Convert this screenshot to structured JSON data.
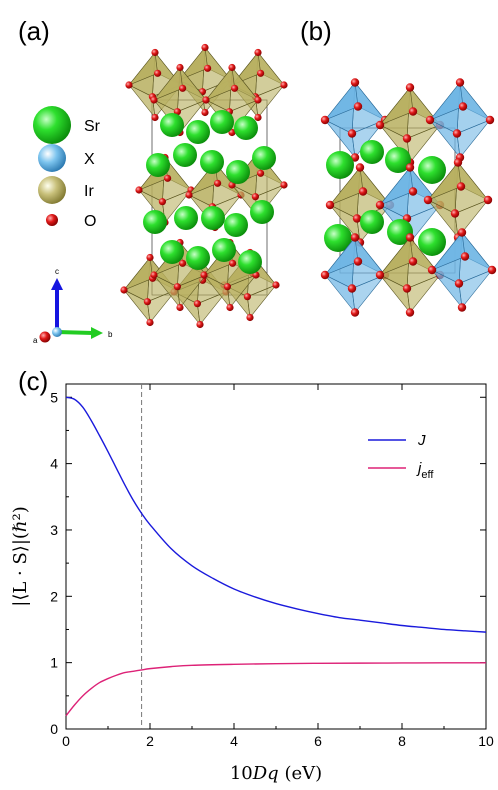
{
  "panels": {
    "a": "(a)",
    "b": "(b)",
    "c": "(c)"
  },
  "structure_legend": [
    {
      "label": "Sr",
      "color": "#22cc22",
      "kind": "big"
    },
    {
      "label": "X",
      "color": "#66bbee",
      "kind": "mid"
    },
    {
      "label": "Ir",
      "color": "#b8b060",
      "kind": "mid"
    },
    {
      "label": "O",
      "color": "#dd1111",
      "kind": "small"
    }
  ],
  "axes_triad": {
    "c": "c",
    "a": "a",
    "b": "b"
  },
  "chart_data": {
    "type": "line",
    "title": "",
    "xlabel": "10Dq (eV)",
    "ylabel": "|⟨L · S⟩|(ℏ²)",
    "xlim": [
      0,
      10
    ],
    "ylim": [
      0,
      5.2
    ],
    "xticks": [
      0,
      2,
      4,
      6,
      8,
      10
    ],
    "yticks": [
      0,
      1,
      2,
      3,
      4,
      5
    ],
    "vline_x": 1.8,
    "legend_position": "top-right",
    "series": [
      {
        "name": "J",
        "color": "#1a1adc",
        "x": [
          0,
          0.2,
          0.4,
          0.6,
          0.8,
          1.0,
          1.2,
          1.4,
          1.6,
          1.8,
          2.0,
          2.5,
          3.0,
          3.5,
          4.0,
          4.5,
          5.0,
          5.5,
          6.0,
          6.5,
          7.0,
          7.5,
          8.0,
          8.5,
          9.0,
          9.5,
          10.0
        ],
        "y": [
          5.0,
          4.97,
          4.85,
          4.65,
          4.42,
          4.18,
          3.93,
          3.68,
          3.45,
          3.25,
          3.08,
          2.72,
          2.46,
          2.27,
          2.11,
          1.99,
          1.89,
          1.81,
          1.74,
          1.68,
          1.64,
          1.6,
          1.56,
          1.53,
          1.5,
          1.48,
          1.46
        ]
      },
      {
        "name": "j_eff",
        "color": "#dd2277",
        "x": [
          0,
          0.2,
          0.4,
          0.6,
          0.8,
          1.0,
          1.2,
          1.4,
          1.6,
          1.8,
          2.0,
          2.5,
          3.0,
          4.0,
          5.0,
          6.0,
          7.0,
          8.0,
          9.0,
          10.0
        ],
        "y": [
          0.2,
          0.36,
          0.5,
          0.61,
          0.7,
          0.76,
          0.81,
          0.85,
          0.87,
          0.89,
          0.91,
          0.94,
          0.96,
          0.975,
          0.985,
          0.99,
          0.993,
          0.995,
          0.997,
          0.998
        ]
      }
    ]
  }
}
